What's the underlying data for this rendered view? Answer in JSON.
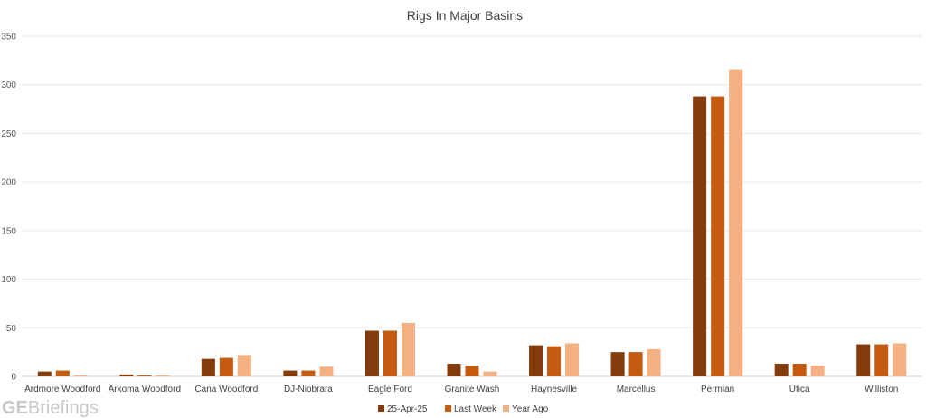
{
  "chart_data": {
    "type": "bar",
    "title": "Rigs In Major Basins",
    "xlabel": "",
    "ylabel": "",
    "ylim": [
      0,
      350
    ],
    "yticks": [
      0,
      50,
      100,
      150,
      200,
      250,
      300,
      350
    ],
    "grid": "horizontal",
    "legend_position": "bottom",
    "categories": [
      "Ardmore Woodford",
      "Arkoma Woodford",
      "Cana Woodford",
      "DJ-Niobrara",
      "Eagle Ford",
      "Granite Wash",
      "Haynesville",
      "Marcellus",
      "Permian",
      "Utica",
      "Williston"
    ],
    "series": [
      {
        "name": "25-Apr-25",
        "color": "#843C0C",
        "values": [
          5,
          2,
          18,
          6,
          47,
          13,
          32,
          25,
          288,
          13,
          33
        ]
      },
      {
        "name": "Last Week",
        "color": "#C55A11",
        "values": [
          6,
          1,
          19,
          6,
          47,
          11,
          31,
          25,
          288,
          13,
          33
        ]
      },
      {
        "name": "Year Ago",
        "color": "#F4B183",
        "values": [
          1,
          1,
          22,
          10,
          55,
          5,
          34,
          28,
          316,
          11,
          34
        ]
      }
    ]
  },
  "watermark": {
    "bold": "GE",
    "rest": "Briefings"
  }
}
